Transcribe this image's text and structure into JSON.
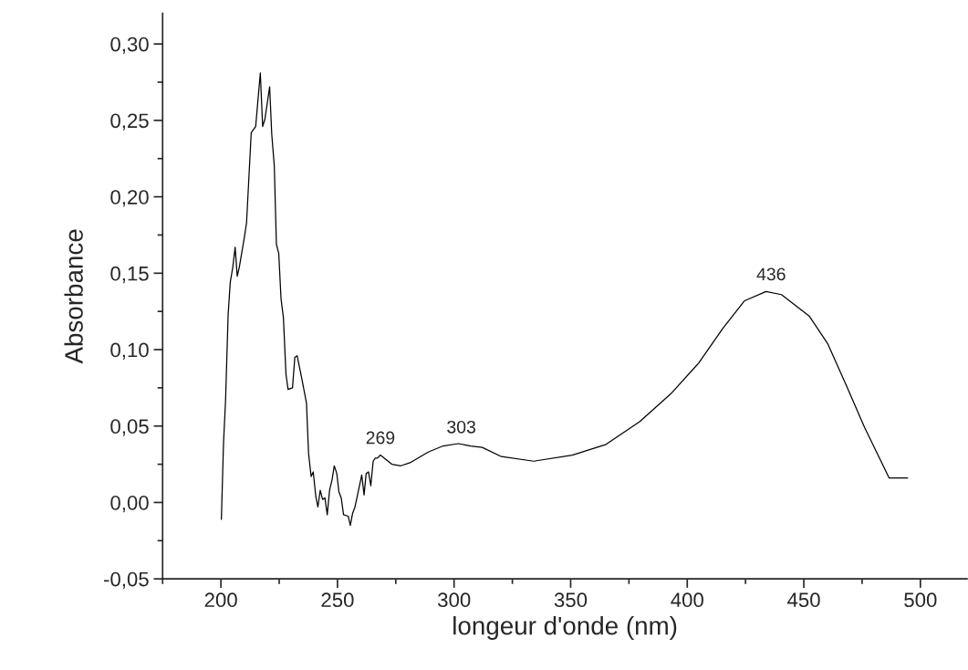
{
  "chart_data": {
    "type": "line",
    "xlabel": "longeur d'onde (nm)",
    "ylabel": "Absorbance",
    "series": [
      {
        "color": "#000000",
        "x": [
          200.2,
          201.1,
          202.0,
          203.1,
          204.0,
          205.1,
          206.1,
          207.0,
          207.9,
          210.0,
          211.0,
          213.0,
          214.9,
          216.9,
          217.9,
          218.9,
          220.9,
          221.8,
          222.9,
          223.8,
          224.8,
          225.8,
          226.8,
          227.9,
          228.8,
          230.7,
          231.7,
          232.7,
          234.7,
          236.7,
          237.6,
          238.7,
          239.6,
          240.7,
          241.6,
          242.6,
          243.6,
          244.6,
          245.6,
          246.6,
          247.7,
          248.6,
          249.7,
          250.6,
          251.6,
          252.6,
          254.6,
          255.5,
          256.5,
          257.5,
          260.4,
          261.4,
          262.3,
          263.3,
          264.3,
          265.3,
          266.2,
          267.1,
          268.4,
          270.1,
          273.3,
          277.2,
          281.1,
          288.9,
          295.3,
          301.8,
          307.1,
          312.1,
          320.3,
          334.1,
          350.7,
          365.2,
          379.7,
          392.9,
          404.8,
          415.3,
          424.6,
          433.8,
          440.4,
          452.3,
          460.2,
          468.1,
          476.1,
          486.6,
          494.5
        ],
        "values": [
          -0.011,
          0.038,
          0.067,
          0.123,
          0.144,
          0.154,
          0.167,
          0.148,
          0.154,
          0.173,
          0.183,
          0.242,
          0.246,
          0.281,
          0.246,
          0.251,
          0.272,
          0.241,
          0.22,
          0.169,
          0.163,
          0.133,
          0.121,
          0.084,
          0.074,
          0.075,
          0.095,
          0.096,
          0.081,
          0.065,
          0.032,
          0.017,
          0.02,
          0.004,
          -0.003,
          0.008,
          0.002,
          0.003,
          -0.008,
          0.008,
          0.015,
          0.024,
          0.019,
          0.007,
          0.003,
          -0.008,
          -0.009,
          -0.015,
          -0.007,
          -0.003,
          0.018,
          0.005,
          0.019,
          0.02,
          0.011,
          0.027,
          0.029,
          0.029,
          0.031,
          0.029,
          0.025,
          0.024,
          0.026,
          0.033,
          0.037,
          0.0385,
          0.037,
          0.036,
          0.03,
          0.027,
          0.031,
          0.038,
          0.053,
          0.071,
          0.091,
          0.114,
          0.132,
          0.138,
          0.136,
          0.122,
          0.104,
          0.077,
          0.049,
          0.016,
          0.016
        ]
      }
    ],
    "annotations": [
      {
        "text": "269",
        "x": 268.4,
        "y": 0.031
      },
      {
        "text": "303",
        "x": 303.1,
        "y": 0.038
      },
      {
        "text": "436",
        "x": 436,
        "y": 0.138
      }
    ],
    "xlim": [
      175,
      520
    ],
    "xticks": [
      200,
      250,
      300,
      350,
      400,
      450,
      500
    ],
    "ylim": [
      -0.05,
      0.32
    ],
    "yticks": [
      {
        "value": -0.05,
        "label": "-0,05"
      },
      {
        "value": 0,
        "label": "0,00"
      },
      {
        "value": 0.05,
        "label": "0,05"
      },
      {
        "value": 0.1,
        "label": "0,10"
      },
      {
        "value": 0.15,
        "label": "0,15"
      },
      {
        "value": 0.2,
        "label": "0,20"
      },
      {
        "value": 0.25,
        "label": "0,25"
      },
      {
        "value": 0.3,
        "label": "0,30"
      }
    ],
    "grid": false,
    "marker": "none",
    "line_style": "solid"
  }
}
